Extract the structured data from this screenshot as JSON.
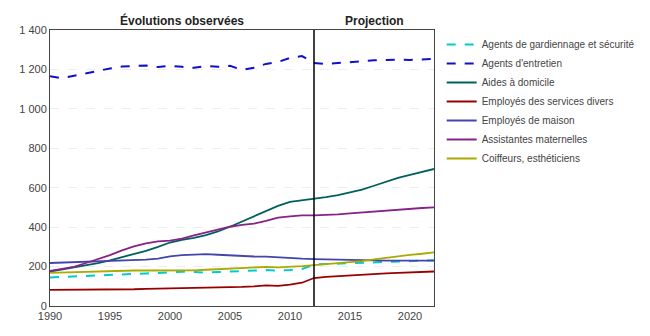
{
  "chart_data": {
    "type": "line",
    "annotations": [
      "Évolutions observées",
      "Projection"
    ],
    "split_x": 2012,
    "x": [
      1990,
      1991,
      1992,
      1993,
      1994,
      1995,
      1996,
      1997,
      1998,
      1999,
      2000,
      2001,
      2002,
      2003,
      2004,
      2005,
      2006,
      2007,
      2008,
      2009,
      2010,
      2011,
      2012,
      2013,
      2014,
      2015,
      2016,
      2017,
      2018,
      2019,
      2020,
      2021,
      2022
    ],
    "series": [
      {
        "name": "Agents de gardiennage et sécurité",
        "color": "#00CCCC",
        "line_style": "dashed",
        "values": [
          145,
          148,
          148,
          152,
          155,
          160,
          162,
          163,
          165,
          168,
          172,
          174,
          172,
          170,
          172,
          175,
          178,
          180,
          182,
          180,
          182,
          188,
          210,
          213,
          215,
          218,
          220,
          222,
          224,
          226,
          228,
          230,
          232
        ]
      },
      {
        "name": "Agents d'entretien",
        "color": "#1010CC",
        "line_style": "dashed",
        "values": [
          1165,
          1155,
          1168,
          1180,
          1195,
          1205,
          1215,
          1218,
          1220,
          1212,
          1218,
          1213,
          1208,
          1218,
          1213,
          1218,
          1198,
          1208,
          1228,
          1238,
          1258,
          1268,
          1233,
          1228,
          1233,
          1238,
          1243,
          1246,
          1248,
          1250,
          1248,
          1250,
          1253
        ]
      },
      {
        "name": "Aides à domicile",
        "color": "#006060",
        "line_style": "solid",
        "values": [
          175,
          185,
          195,
          205,
          218,
          232,
          248,
          262,
          280,
          300,
          322,
          335,
          345,
          360,
          378,
          402,
          428,
          452,
          480,
          508,
          528,
          535,
          542,
          552,
          562,
          576,
          590,
          610,
          630,
          650,
          665,
          680,
          695
        ]
      },
      {
        "name": "Employés des services divers",
        "color": "#990000",
        "line_style": "solid",
        "values": [
          82,
          82,
          82,
          82,
          83,
          83,
          84,
          85,
          87,
          88,
          90,
          92,
          92,
          92,
          93,
          95,
          97,
          100,
          105,
          102,
          108,
          118,
          142,
          148,
          152,
          155,
          158,
          162,
          165,
          168,
          170,
          173,
          175
        ]
      },
      {
        "name": "Employés de maison",
        "color": "#4444AA",
        "line_style": "solid",
        "values": [
          218,
          220,
          222,
          224,
          226,
          226,
          228,
          232,
          235,
          240,
          252,
          258,
          260,
          263,
          260,
          256,
          253,
          251,
          250,
          246,
          243,
          240,
          238,
          236,
          234,
          233,
          232,
          231,
          230,
          230,
          230,
          230,
          230
        ]
      },
      {
        "name": "Assistantes maternelles",
        "color": "#882288",
        "line_style": "solid",
        "values": [
          178,
          188,
          198,
          218,
          238,
          258,
          282,
          302,
          318,
          328,
          332,
          342,
          358,
          372,
          388,
          402,
          412,
          418,
          432,
          448,
          455,
          460,
          460,
          462,
          465,
          470,
          475,
          480,
          485,
          490,
          493,
          497,
          500
        ]
      },
      {
        "name": "Coiffeurs, esthéticiens",
        "color": "#AAAA00",
        "line_style": "solid",
        "values": [
          168,
          170,
          172,
          174,
          176,
          178,
          179,
          180,
          180,
          180,
          179,
          180,
          181,
          184,
          187,
          190,
          193,
          196,
          198,
          196,
          198,
          202,
          207,
          212,
          217,
          222,
          228,
          237,
          245,
          252,
          259,
          265,
          272
        ]
      }
    ],
    "xlim": [
      1990,
      2022
    ],
    "xticks": [
      1990,
      1995,
      2000,
      2005,
      2010,
      2015,
      2020
    ],
    "ylim": [
      0,
      1400
    ],
    "yticks": [
      0,
      200,
      400,
      600,
      800,
      {
        "value": 1000,
        "label": "1 000"
      },
      {
        "value": 1200,
        "label": "1 200"
      },
      {
        "value": 1400,
        "label": "1 400"
      }
    ],
    "grid": true,
    "legend": "right"
  }
}
